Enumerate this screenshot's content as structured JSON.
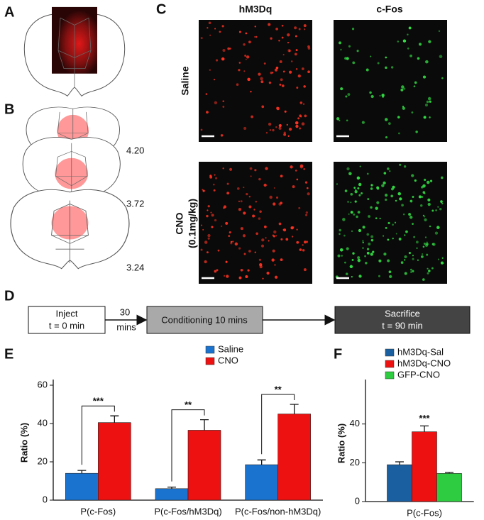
{
  "panel_labels": {
    "a": "A",
    "b": "B",
    "c": "C",
    "d": "D",
    "e": "E",
    "f": "F"
  },
  "panel_b": {
    "levels": [
      "4.20",
      "3.72",
      "3.24"
    ]
  },
  "panel_c": {
    "columns": [
      "hM3Dq",
      "c-Fos"
    ],
    "rows": [
      {
        "lines": [
          "Saline"
        ]
      },
      {
        "lines": [
          "CNO",
          "(0.1mg/kg)"
        ]
      }
    ]
  },
  "panel_d": {
    "inject": [
      "Inject",
      "t = 0 min"
    ],
    "delay": [
      "30",
      "mins"
    ],
    "conditioning": "Conditioning 10 mins",
    "sacrifice": [
      "Sacrifice",
      "t = 90 min"
    ]
  },
  "chart_data": [
    {
      "type": "bar",
      "ylabel": "Ratio (%)",
      "categories": [
        "P(c-Fos)",
        "P(c-Fos/hM3Dq)",
        "P(c-Fos/non-hM3Dq)"
      ],
      "series": [
        {
          "name": "Saline",
          "color": "#1a73cf",
          "values": [
            14,
            6,
            18.5
          ],
          "errors": [
            1.5,
            0.8,
            2.5
          ]
        },
        {
          "name": "CNO",
          "color": "#ee1111",
          "values": [
            40.5,
            36.5,
            45
          ],
          "errors": [
            3.5,
            5.5,
            5
          ]
        }
      ],
      "annotations": [
        "***",
        "**",
        "**"
      ],
      "significance_brackets": true,
      "ylim": [
        0,
        60
      ],
      "yticks": [
        0,
        20,
        40,
        60
      ]
    },
    {
      "type": "bar",
      "ylabel": "Ratio (%)",
      "categories": [
        "P(c-Fos)"
      ],
      "series": [
        {
          "name": "hM3Dq-Sal",
          "color": "#1a5fa0",
          "values": [
            19
          ],
          "errors": [
            1.5
          ]
        },
        {
          "name": "hM3Dq-CNO",
          "color": "#ee1111",
          "values": [
            36
          ],
          "errors": [
            3
          ]
        },
        {
          "name": "GFP-CNO",
          "color": "#2ecc40",
          "values": [
            14.5
          ],
          "errors": [
            0.5
          ]
        }
      ],
      "annotations": [
        "***"
      ],
      "significance_brackets": false,
      "ylim": [
        0,
        60
      ],
      "yticks": [
        0,
        20,
        40
      ]
    }
  ]
}
